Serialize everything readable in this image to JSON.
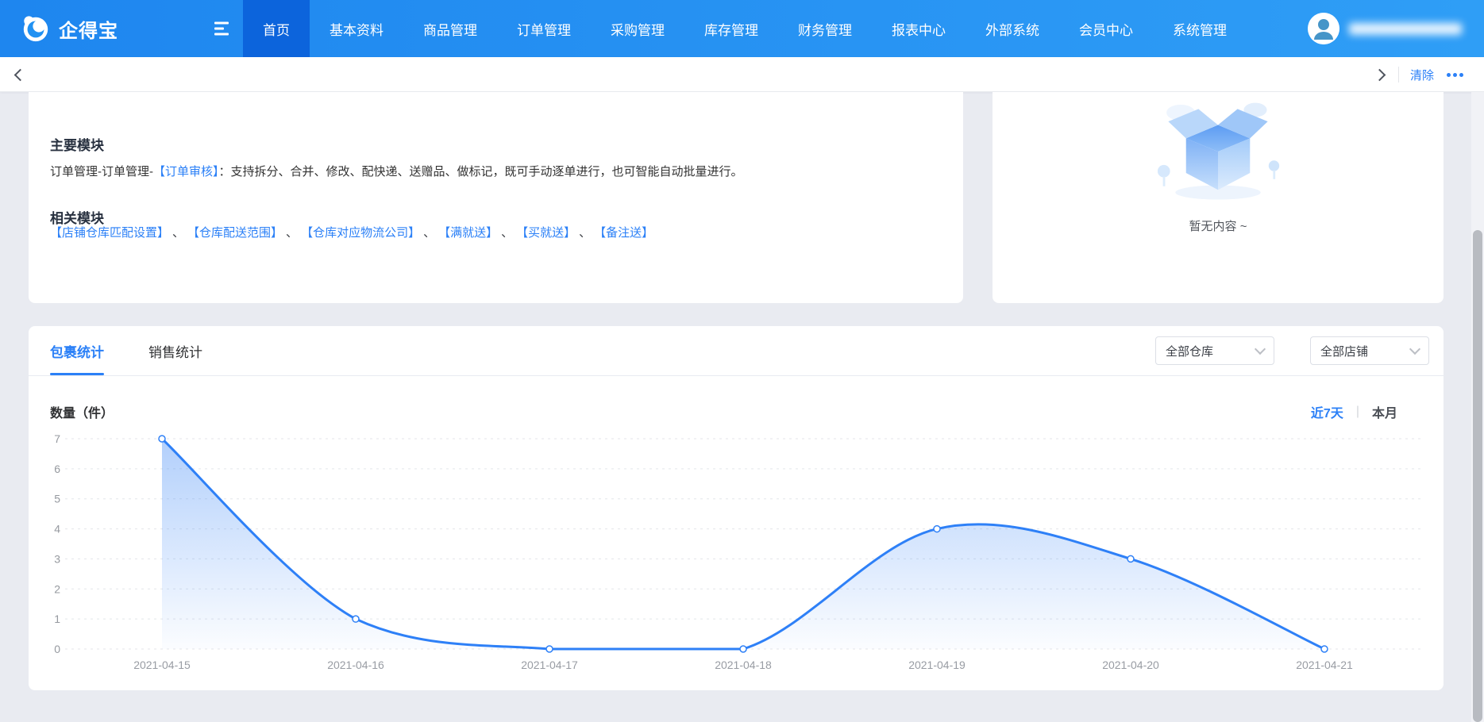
{
  "navbar": {
    "brand": "企得宝",
    "items": [
      {
        "label": "首页",
        "active": true
      },
      {
        "label": "基本资料"
      },
      {
        "label": "商品管理"
      },
      {
        "label": "订单管理"
      },
      {
        "label": "采购管理"
      },
      {
        "label": "库存管理"
      },
      {
        "label": "财务管理"
      },
      {
        "label": "报表中心"
      },
      {
        "label": "外部系统"
      },
      {
        "label": "会员中心"
      },
      {
        "label": "系统管理"
      }
    ]
  },
  "subbar": {
    "clear_label": "清除"
  },
  "main_module_card": {
    "title": "主要模块",
    "desc_prefix": "订单管理-订单管理-",
    "desc_link": "【订单审核】",
    "desc_suffix": "：支持拆分、合并、修改、配快递、送赠品、做标记，既可手动逐单进行，也可智能自动批量进行。",
    "related_title": "相关模块",
    "related_separator": "、",
    "related_links": [
      "【店铺仓库匹配设置】",
      "【仓库配送范围】",
      "【仓库对应物流公司】",
      "【满就送】",
      "【买就送】",
      "【备注送】"
    ]
  },
  "empty_card": {
    "text": "暂无内容 ~"
  },
  "stats_card": {
    "tabs": [
      {
        "label": "包裹统计",
        "active": true
      },
      {
        "label": "销售统计"
      }
    ],
    "warehouse_filter": "全部仓库",
    "shop_filter": "全部店铺",
    "metric_label": "数量（件）",
    "period_separator": "|",
    "periods": [
      {
        "label": "近7天",
        "active": true
      },
      {
        "label": "本月"
      }
    ]
  },
  "chart_data": {
    "type": "area",
    "title": "",
    "categories": [
      "2021-04-15",
      "2021-04-16",
      "2021-04-17",
      "2021-04-18",
      "2021-04-19",
      "2021-04-20",
      "2021-04-21"
    ],
    "values": [
      7,
      1,
      0,
      0,
      4,
      3,
      0
    ],
    "xlabel": "",
    "ylabel": "数量（件）",
    "ylim": [
      0,
      7
    ],
    "yticks": [
      0,
      1,
      2,
      3,
      4,
      5,
      6,
      7
    ],
    "grid": true,
    "smooth": true,
    "legend_position": "none",
    "line_color": "#2e80f7",
    "marker": "hollow-circle",
    "area_top_color": "rgba(62,136,247,0.40)",
    "area_bottom_color": "rgba(62,136,247,0.02)",
    "gridline_color": "#e4e6ea",
    "axis_label_color": "#95999f"
  },
  "colors": {
    "accent": "#2b80f7",
    "navbar_start": "#1e86ef",
    "navbar_end": "#2f9ef6",
    "nav_active_bg": "#0c64dc",
    "background": "#e9ebf1",
    "text_dark": "#303133",
    "text_gray": "#95999f"
  }
}
